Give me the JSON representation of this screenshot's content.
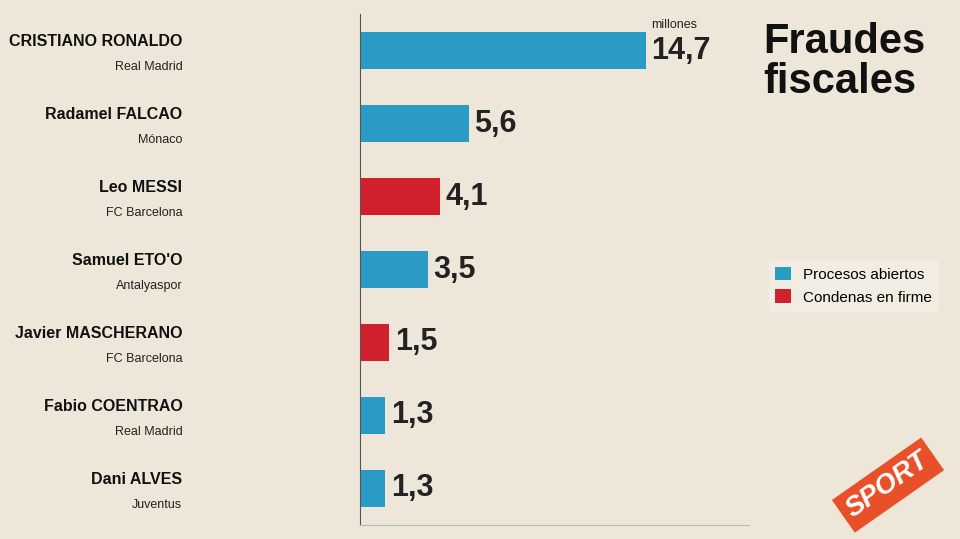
{
  "chart_data": {
    "type": "bar",
    "orientation": "horizontal",
    "title": "Fraudes fiscales",
    "unit_label": "millones",
    "logo": "SPORT",
    "categories": [
      "CRISTIANO RONALDO",
      "Radamel FALCAO",
      "Leo MESSI",
      "Samuel ETO'O",
      "Javier MASCHERANO",
      "Fabio COENTRAO",
      "Dani ALVES"
    ],
    "clubs": [
      "Real Madrid",
      "Mónaco",
      "FC Barcelona",
      "Antalyaspor",
      "FC Barcelona",
      "Real Madrid",
      "Juventus"
    ],
    "series": [
      {
        "name": "Procesos abiertos",
        "color": "#2a9bc4",
        "values": [
          14.7,
          5.6,
          null,
          3.5,
          null,
          1.3,
          1.3
        ],
        "value_labels": [
          "14,7",
          "5,6",
          null,
          "3,5",
          null,
          "1,3",
          "1,3"
        ]
      },
      {
        "name": "Condenas en firme",
        "color": "#d0202c",
        "values": [
          null,
          null,
          4.1,
          null,
          1.5,
          null,
          null
        ],
        "value_labels": [
          null,
          null,
          "4,1",
          null,
          "1,5",
          null,
          null
        ]
      }
    ],
    "xlim": [
      0,
      20
    ],
    "data_labels": true,
    "tick_labels": false,
    "legend": "center right",
    "grid": false
  }
}
